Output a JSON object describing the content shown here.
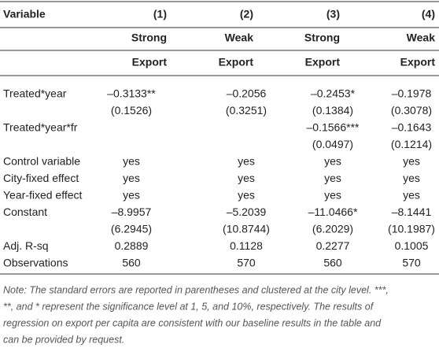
{
  "table": {
    "header": {
      "variable": "Variable",
      "columns": [
        "(1)",
        "(2)",
        "(3)",
        "(4)"
      ],
      "strength": [
        "Strong",
        "Weak",
        "Strong",
        "Weak"
      ],
      "outcome": [
        "Export",
        "Export",
        "Export",
        "Export"
      ]
    },
    "rows": [
      [
        "Treated*year",
        "–0.3133**",
        "–0.2056",
        "–0.2453*",
        "–0.1978"
      ],
      [
        null,
        "(0.1526)",
        "(0.3251)",
        "(0.1384)",
        "(0.3078)"
      ],
      [
        "Treated*year*fr",
        null,
        null,
        "–0.1566***",
        "–0.1643"
      ],
      [
        null,
        null,
        null,
        "(0.0497)",
        "(0.1214)"
      ],
      [
        "Control variable",
        "yes",
        "yes",
        "yes",
        "yes"
      ],
      [
        "City-fixed effect",
        "yes",
        "yes",
        "yes",
        "yes"
      ],
      [
        "Year-fixed effect",
        "yes",
        "yes",
        "yes",
        "yes"
      ],
      [
        "Constant",
        "–8.9957",
        "–5.2039",
        "–11.0466*",
        "–8.1441"
      ],
      [
        null,
        "(6.2945)",
        "(10.8744)",
        "(6.2029)",
        "(10.1987)"
      ],
      [
        "Adj. R-sq",
        "0.2889",
        "0.1128",
        "0.2277",
        "0.1005"
      ],
      [
        "Observations",
        "560",
        "570",
        "560",
        "570"
      ]
    ],
    "note": [
      "Note: The standard errors are reported in parentheses and clustered at the city level. ***,",
      "**, and * represent the significance level at 1, 5, and 10%, respectively. The results of",
      "regression on export per capita are consistent with our baseline results in the table and",
      "can be provided by request."
    ]
  }
}
